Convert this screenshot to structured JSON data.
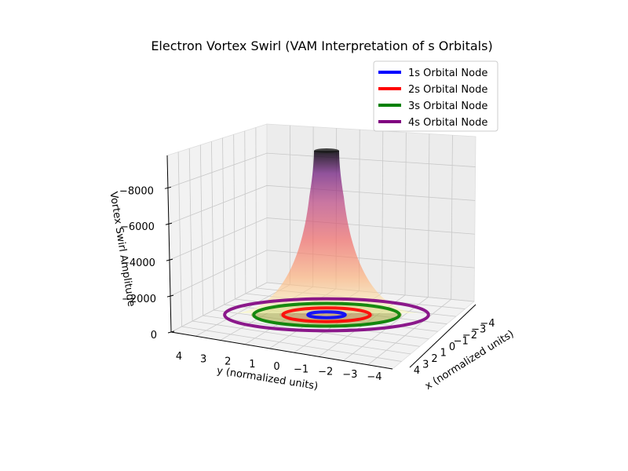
{
  "chart_data": {
    "type": "surface",
    "title": "Electron Vortex Swirl (VAM Interpretation of s Orbitals)",
    "xlabel": "x (normalized units)",
    "ylabel": "y (normalized units)",
    "zlabel": "Vortex Swirl Amplitude",
    "x_ticks": [
      "4",
      "3",
      "2",
      "1",
      "0",
      "−1",
      "−2",
      "−3",
      "−4"
    ],
    "y_ticks": [
      "4",
      "3",
      "2",
      "1",
      "0",
      "−1",
      "−2",
      "−3",
      "−4"
    ],
    "z_ticks": [
      "0",
      "−2000",
      "−4000",
      "−6000",
      "−8000"
    ],
    "xlim": [
      -4.5,
      4.5
    ],
    "ylim": [
      -4.5,
      4.5
    ],
    "zlim": [
      0,
      -9800
    ],
    "surface": {
      "colormap": "magma",
      "min_value": -9000,
      "peak_location": [
        0,
        0
      ]
    },
    "grid": true,
    "legend_position": "top-right",
    "series": [
      {
        "name": "1s Orbital Node",
        "color": "#0000ff",
        "radius": 0.9
      },
      {
        "name": "2s Orbital Node",
        "color": "#ff0000",
        "radius": 2.1
      },
      {
        "name": "3s Orbital Node",
        "color": "#008000",
        "radius": 3.5
      },
      {
        "name": "4s Orbital Node",
        "color": "#800080",
        "radius": 4.9
      }
    ]
  }
}
